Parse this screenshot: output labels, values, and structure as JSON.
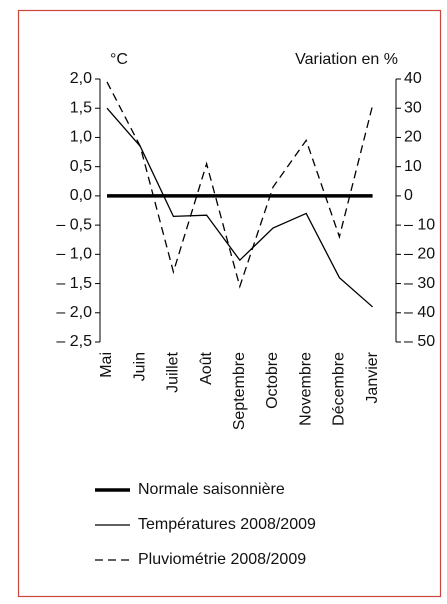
{
  "chart_data": {
    "type": "line",
    "y_label": "°C",
    "y2_label": "Variation en %",
    "categories": [
      "Mai",
      "Juin",
      "Juillet",
      "Août",
      "Septembre",
      "Octobre",
      "Novembre",
      "Décembre",
      "Janvier"
    ],
    "series": [
      {
        "name": "Normale saisonnière",
        "color": "#000000",
        "style": "thick",
        "values": [
          0,
          0,
          0,
          0,
          0,
          0,
          0,
          0,
          0
        ]
      },
      {
        "name": "Températures 2008/2009",
        "color": "#000000",
        "style": "solid",
        "values": [
          1.5,
          0.85,
          -0.35,
          -0.33,
          -1.1,
          -0.55,
          -0.3,
          -1.4,
          -1.9
        ]
      },
      {
        "name": "Pluviométrie 2008/2009",
        "color": "#000000",
        "style": "dashed",
        "axis": "y2",
        "values": [
          39,
          17,
          -26,
          11,
          -31,
          3,
          19,
          -14,
          31
        ]
      }
    ],
    "ylim": [
      -2.5,
      2.0
    ],
    "yticks": [
      {
        "value": 2.0,
        "label": "2,0"
      },
      {
        "value": 1.5,
        "label": "1,5"
      },
      {
        "value": 1.0,
        "label": "1,0"
      },
      {
        "value": 0.5,
        "label": "0,5"
      },
      {
        "value": 0,
        "label": "0,0"
      },
      {
        "value": -0.5,
        "label": "– 0,5"
      },
      {
        "value": -1.0,
        "label": "– 1,0"
      },
      {
        "value": -1.5,
        "label": "– 1,5"
      },
      {
        "value": -2.0,
        "label": "– 2,0"
      },
      {
        "value": -2.5,
        "label": "– 2,5"
      }
    ],
    "y2lim": [
      -50,
      40
    ],
    "y2ticks": [
      40,
      30,
      20,
      10,
      0,
      {
        "value": -10,
        "label": "– 10"
      },
      {
        "value": -20,
        "label": "– 20"
      },
      {
        "value": -30,
        "label": "– 30"
      },
      {
        "value": -40,
        "label": "– 40"
      },
      {
        "value": -50,
        "label": "– 50"
      }
    ]
  }
}
